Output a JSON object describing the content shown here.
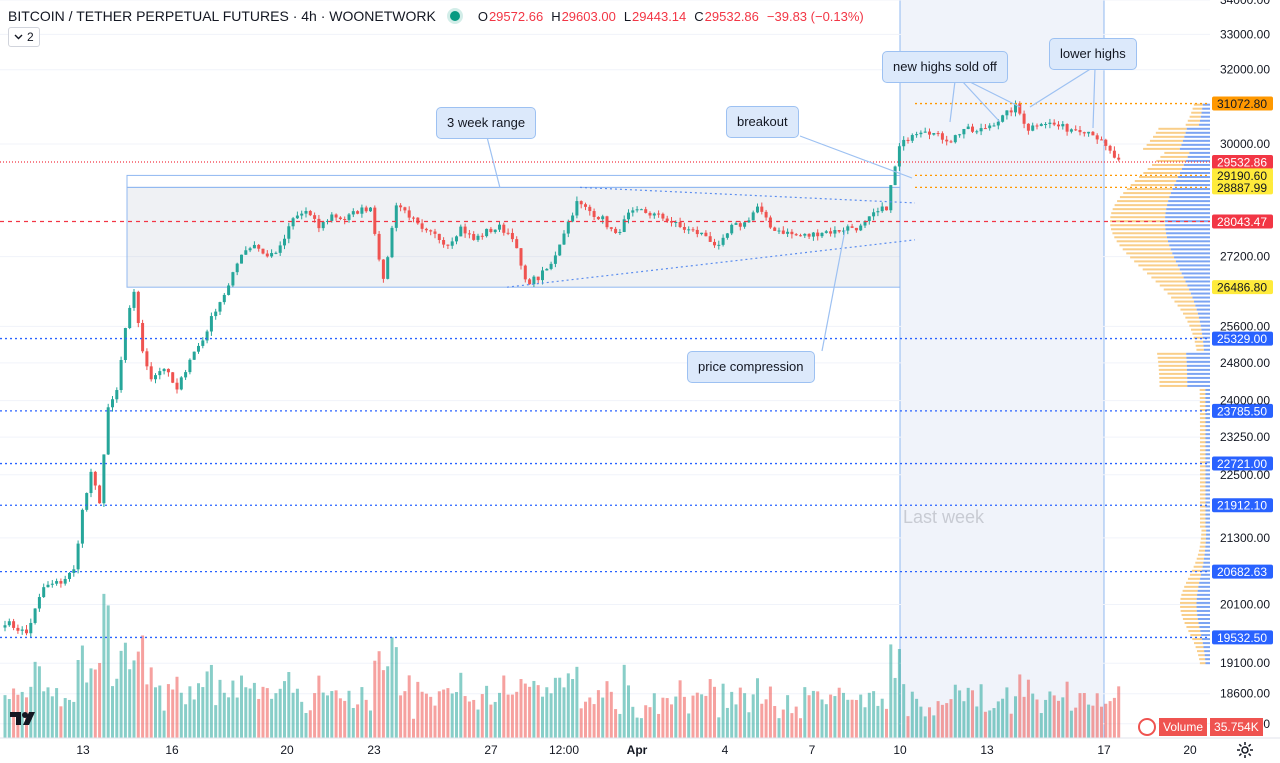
{
  "header": {
    "symbol": "BITCOIN / TETHER PERPETUAL FUTURES · 4h · WOONETWORK",
    "open_label": "O",
    "open": "29572.66",
    "high_label": "H",
    "high": "29603.00",
    "low_label": "L",
    "low": "29443.14",
    "close_label": "C",
    "close": "29532.86",
    "change": "−39.83 (−0.13%)",
    "indicator_count": "2"
  },
  "annotations": {
    "three_week_range": "3 week range",
    "breakout": "breakout",
    "new_highs_sold_off": "new highs sold off",
    "lower_highs": "lower highs",
    "price_compression": "price compression",
    "last_week": "Last week"
  },
  "volume_legend": {
    "label": "Volume",
    "value": "35.754K"
  },
  "colors": {
    "up": "#26a69a",
    "down": "#ef5350",
    "level_line": "#2962ff",
    "range_box": "#90b8f0",
    "vp_up": "#f7c26b",
    "vp_down": "#5b8def"
  },
  "icons": [
    "tradingview-logo-icon",
    "settings-icon",
    "flag-icon",
    "chevron-down-icon"
  ],
  "chart_data": {
    "type": "candlestick",
    "title": "BITCOIN / TETHER PERPETUAL FUTURES · 4h · WOONETWORK",
    "y_scale": "log",
    "ylim": [
      17950,
      34150
    ],
    "y_ticks": [
      "34000.00",
      "33000.00",
      "32000.00",
      "30000.00",
      "27200.00",
      "25600.00",
      "24800.00",
      "24000.00",
      "23250.00",
      "22500.00",
      "21300.00",
      "20100.00",
      "19100.00",
      "18600.00",
      "18120.00"
    ],
    "x_ticks": [
      "13",
      "16",
      "20",
      "23",
      "27",
      "12:00",
      "Apr",
      "4",
      "7",
      "10",
      "13",
      "17",
      "20"
    ],
    "price_labels": [
      {
        "value": "31072.80",
        "kind": "resistance"
      },
      {
        "value": "29532.86",
        "kind": "last"
      },
      {
        "value": "29190.60",
        "kind": "resistance"
      },
      {
        "value": "28887.99",
        "kind": "resistance"
      },
      {
        "value": "28043.47",
        "kind": "poc"
      },
      {
        "value": "26486.80",
        "kind": "support"
      },
      {
        "value": "25329.00",
        "kind": "level"
      },
      {
        "value": "23785.50",
        "kind": "level"
      },
      {
        "value": "22721.00",
        "kind": "level"
      },
      {
        "value": "21912.10",
        "kind": "level"
      },
      {
        "value": "20682.63",
        "kind": "level"
      },
      {
        "value": "19532.50",
        "kind": "level"
      }
    ],
    "range_box": {
      "from": "13",
      "to": "10",
      "top": 28887.99,
      "bottom": 26486.8
    },
    "last_week_shading": {
      "from": "10",
      "to": "17"
    },
    "ohlc_path": [
      [
        0,
        19800
      ],
      [
        5,
        19600
      ],
      [
        9,
        20400
      ],
      [
        13,
        20500
      ],
      [
        16,
        20700
      ],
      [
        18,
        21800
      ],
      [
        20,
        22500
      ],
      [
        22,
        22000
      ],
      [
        24,
        23800
      ],
      [
        26,
        24200
      ],
      [
        28,
        25500
      ],
      [
        30,
        26400
      ],
      [
        32,
        25000
      ],
      [
        34,
        24500
      ],
      [
        37,
        24700
      ],
      [
        40,
        24200
      ],
      [
        43,
        24900
      ],
      [
        46,
        25300
      ],
      [
        49,
        26000
      ],
      [
        52,
        26500
      ],
      [
        55,
        27300
      ],
      [
        58,
        27500
      ],
      [
        61,
        27200
      ],
      [
        64,
        27400
      ],
      [
        67,
        28100
      ],
      [
        70,
        28300
      ],
      [
        73,
        27900
      ],
      [
        76,
        28200
      ],
      [
        79,
        28100
      ],
      [
        82,
        28300
      ],
      [
        85,
        28400
      ],
      [
        88,
        26600
      ],
      [
        91,
        28500
      ],
      [
        94,
        28200
      ],
      [
        97,
        27800
      ],
      [
        100,
        27700
      ],
      [
        103,
        27500
      ],
      [
        106,
        27900
      ],
      [
        109,
        27600
      ],
      [
        112,
        27800
      ],
      [
        115,
        27900
      ],
      [
        118,
        27700
      ],
      [
        121,
        26600
      ],
      [
        124,
        26700
      ],
      [
        127,
        27000
      ],
      [
        130,
        27800
      ],
      [
        133,
        28500
      ],
      [
        136,
        28300
      ],
      [
        139,
        28100
      ],
      [
        142,
        27700
      ],
      [
        145,
        28200
      ],
      [
        148,
        28300
      ],
      [
        151,
        28200
      ],
      [
        154,
        28100
      ],
      [
        157,
        27900
      ],
      [
        160,
        27800
      ],
      [
        163,
        27700
      ],
      [
        166,
        27400
      ],
      [
        169,
        27900
      ],
      [
        172,
        28000
      ],
      [
        175,
        28400
      ],
      [
        178,
        27900
      ],
      [
        181,
        27800
      ],
      [
        184,
        27700
      ],
      [
        187,
        27700
      ],
      [
        190,
        27800
      ],
      [
        193,
        27800
      ],
      [
        196,
        27900
      ],
      [
        199,
        27900
      ],
      [
        202,
        28200
      ],
      [
        205,
        28400
      ],
      [
        208,
        29900
      ],
      [
        211,
        30300
      ],
      [
        214,
        30400
      ],
      [
        217,
        30200
      ],
      [
        220,
        30100
      ],
      [
        223,
        30400
      ],
      [
        226,
        30300
      ],
      [
        229,
        30500
      ],
      [
        232,
        30700
      ],
      [
        235,
        31000
      ],
      [
        238,
        30400
      ],
      [
        241,
        30600
      ],
      [
        244,
        30500
      ],
      [
        247,
        30400
      ],
      [
        250,
        30400
      ],
      [
        253,
        30300
      ],
      [
        256,
        29900
      ],
      [
        259,
        29532
      ]
    ],
    "volume_scale_max": 24
  }
}
